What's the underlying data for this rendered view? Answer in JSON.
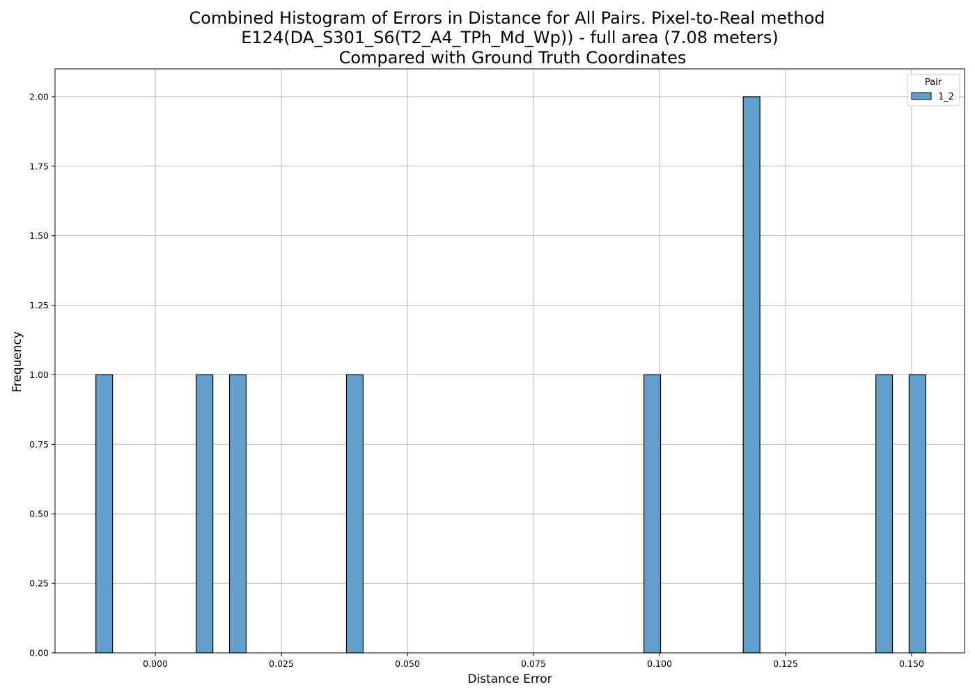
{
  "chart_data": {
    "type": "bar",
    "title_lines": [
      "Combined Histogram of Errors in Distance for All Pairs. Pixel-to-Real method",
      "E124(DA_S301_S6(T2_A4_TPh_Md_Wp)) - full area (7.08 meters)",
      "Compared with Ground Truth Coordinates"
    ],
    "xlabel": "Distance Error",
    "ylabel": "Frequency",
    "xlim": [
      -0.0199,
      0.1605
    ],
    "ylim": [
      0,
      2.1
    ],
    "bin_width": 0.00331,
    "x_ticks": [
      0.0,
      0.025,
      0.05,
      0.075,
      0.1,
      0.125,
      0.15
    ],
    "x_tick_labels": [
      "0.000",
      "0.025",
      "0.050",
      "0.075",
      "0.100",
      "0.125",
      "0.150"
    ],
    "y_ticks": [
      0.0,
      0.25,
      0.5,
      0.75,
      1.0,
      1.25,
      1.5,
      1.75,
      2.0
    ],
    "y_tick_labels": [
      "0.00",
      "0.25",
      "0.50",
      "0.75",
      "1.00",
      "1.25",
      "1.50",
      "1.75",
      "2.00"
    ],
    "grid": true,
    "legend": {
      "title": "Pair",
      "position": "top-right",
      "entries": [
        "1_2"
      ]
    },
    "series": [
      {
        "name": "1_2",
        "color": "#62a0cb",
        "edge_color": "#000000",
        "bins": [
          {
            "x_start": -0.0118,
            "count": 1
          },
          {
            "x_start": 0.0081,
            "count": 1
          },
          {
            "x_start": 0.0147,
            "count": 1
          },
          {
            "x_start": 0.0379,
            "count": 1
          },
          {
            "x_start": 0.0969,
            "count": 1
          },
          {
            "x_start": 0.1166,
            "count": 2
          },
          {
            "x_start": 0.1429,
            "count": 1
          },
          {
            "x_start": 0.1495,
            "count": 1
          }
        ]
      }
    ]
  }
}
